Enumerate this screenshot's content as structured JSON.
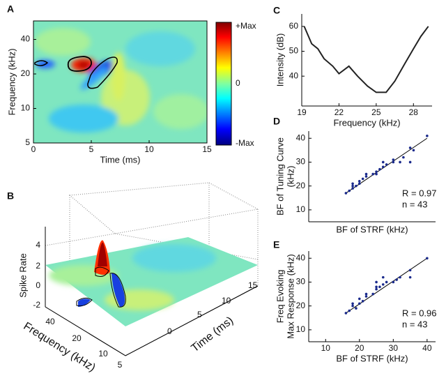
{
  "chart_data": [
    {
      "type": "heatmap",
      "label": "A",
      "xlabel": "Time (ms)",
      "ylabel": "Frequency (kHz)",
      "xlim": [
        0,
        15
      ],
      "xticks": [
        0,
        5,
        10,
        15
      ],
      "ylim": [
        5,
        58
      ],
      "yticks": [
        5,
        10,
        20,
        40
      ],
      "ylog": true,
      "colorbar_labels": [
        "+Max",
        "0",
        "-Max"
      ]
    },
    {
      "type": "surface3d",
      "label": "B",
      "zlabel": "Spike Rate",
      "xlabel": "Frequency (kHz)",
      "ylabel": "Time (ms)",
      "zticks": [
        4,
        2,
        0,
        -2
      ],
      "xticks": [
        40,
        20,
        10,
        5
      ],
      "yticks": [
        15,
        10,
        5,
        0
      ]
    },
    {
      "type": "line",
      "label": "C",
      "xlabel": "Frequency (kHz)",
      "ylabel": "Intensity (dB)",
      "color": "#222222",
      "xlim": [
        19,
        29.5
      ],
      "xticks": [
        19,
        22,
        25,
        28
      ],
      "ylim": [
        28,
        65
      ],
      "yticks": [
        40,
        50,
        60
      ],
      "x": [
        19.2,
        19.8,
        20.3,
        20.8,
        21.5,
        22,
        22.8,
        23.5,
        24.3,
        25,
        25.8,
        26.5,
        27.3,
        28,
        28.6,
        29.2
      ],
      "values": [
        60,
        53,
        51,
        47,
        44,
        41,
        44,
        40,
        36,
        33.5,
        33.5,
        38,
        45,
        51,
        56,
        60
      ]
    },
    {
      "type": "scatter",
      "label": "D",
      "xlabel": "BF of STRF (kHz)",
      "ylabel": [
        "BF of Tuning Curve",
        "(kHz)"
      ],
      "color": "#1a2a8c",
      "xlim": [
        5,
        42.5
      ],
      "xticks": [],
      "ylim": [
        5,
        43
      ],
      "yticks": [
        10,
        20,
        30,
        40
      ],
      "annotations": [
        "R = 0.97",
        "n = 43"
      ],
      "fit": {
        "x": [
          16,
          40
        ],
        "y": [
          17,
          40
        ]
      },
      "x": [
        16,
        17,
        18,
        18,
        18,
        19,
        20,
        20,
        21,
        22,
        22,
        24,
        25,
        25,
        26,
        27,
        27,
        28,
        30,
        30,
        32,
        33,
        35,
        35,
        36,
        40
      ],
      "values": [
        17,
        18,
        19,
        20,
        21,
        20,
        21,
        22,
        23,
        24,
        25,
        25,
        26,
        25,
        27,
        28,
        30,
        29,
        30,
        31,
        30,
        32,
        36,
        30,
        35,
        41
      ]
    },
    {
      "type": "scatter",
      "label": "E",
      "xlabel": "BF of STRF (kHz)",
      "ylabel": [
        "Freq Evoking",
        "Max Response (kHz)"
      ],
      "color": "#1a2a8c",
      "xlim": [
        5,
        42.5
      ],
      "xticks": [
        10,
        20,
        30,
        40
      ],
      "ylim": [
        5,
        43
      ],
      "yticks": [
        10,
        20,
        30,
        40
      ],
      "annotations": [
        "R = 0.96",
        "n = 43"
      ],
      "fit": {
        "x": [
          16,
          40
        ],
        "y": [
          17,
          40
        ]
      },
      "x": [
        16,
        17,
        18,
        18,
        19,
        20,
        20,
        21,
        22,
        22,
        24,
        25,
        25,
        25,
        26,
        27,
        27,
        28,
        30,
        31,
        32,
        35,
        35,
        40
      ],
      "values": [
        17,
        18,
        20,
        21,
        19,
        21,
        23,
        22,
        24,
        25,
        25,
        27,
        28,
        30,
        28,
        29,
        32,
        30,
        30,
        31,
        32,
        32,
        35,
        40
      ]
    }
  ]
}
